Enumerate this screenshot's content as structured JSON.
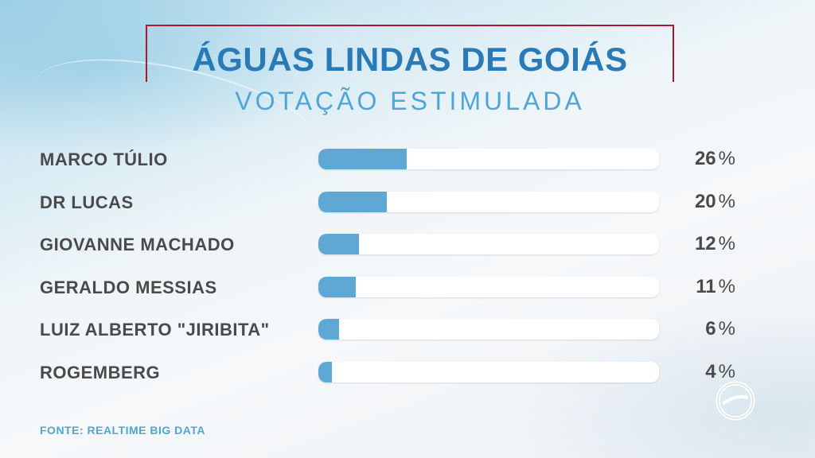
{
  "header": {
    "title": "ÁGUAS LINDAS DE GOIÁS",
    "subtitle": "VOTAÇÃO ESTIMULADA"
  },
  "chart_data": {
    "type": "bar",
    "orientation": "horizontal",
    "title": "ÁGUAS LINDAS DE GOIÁS",
    "subtitle": "VOTAÇÃO ESTIMULADA",
    "categories": [
      "MARCO TÚLIO",
      "DR LUCAS",
      "GIOVANNE MACHADO",
      "GERALDO MESSIAS",
      "LUIZ ALBERTO \"JIRIBITA\"",
      "ROGEMBERG"
    ],
    "values": [
      26,
      20,
      12,
      11,
      6,
      4
    ],
    "value_labels": [
      "26",
      "20",
      "12",
      "11",
      "6",
      "4"
    ],
    "unit": "%",
    "xlim": [
      0,
      100
    ],
    "grid": false,
    "legend": "none",
    "colors": {
      "bar": "#5fa8d3",
      "track": "#ffffff",
      "title": "#2b7ab8",
      "subtitle": "#4fa6d6",
      "frame": "#a6192e"
    }
  },
  "footer": {
    "source": "FONTE: REALTIME BIG DATA"
  },
  "logo": {
    "icon": "broadcaster-logo-icon"
  }
}
